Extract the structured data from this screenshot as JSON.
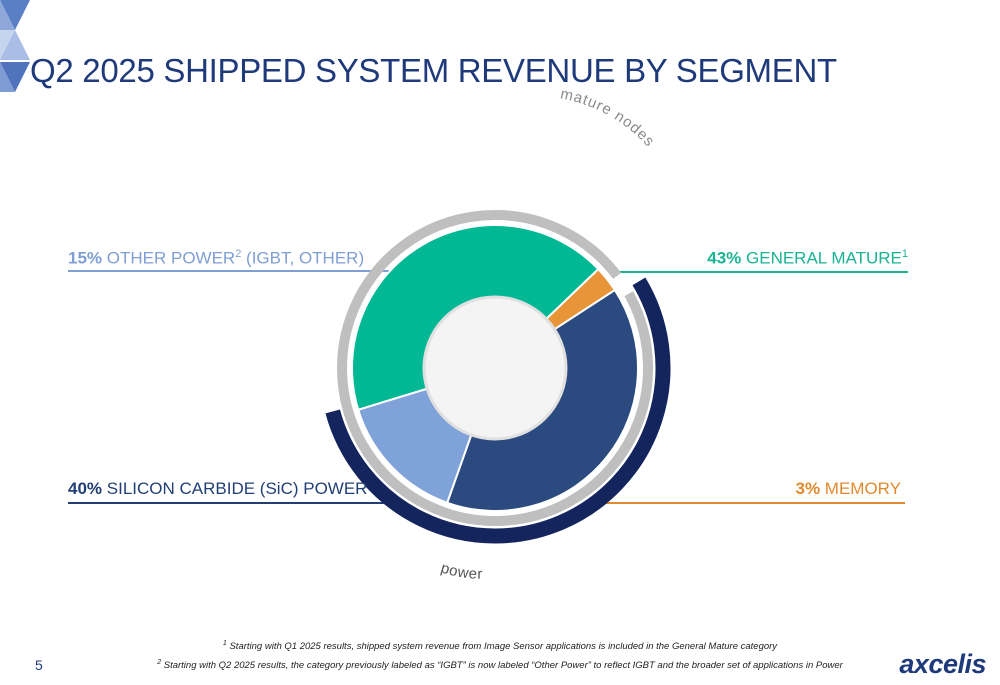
{
  "page": {
    "title": "Q2 2025 SHIPPED SYSTEM REVENUE BY SEGMENT",
    "page_number": "5",
    "logo_text": "axcelis"
  },
  "labels": {
    "other_power": {
      "pct": "15%",
      "name": " OTHER POWER",
      "sup": "2",
      "suffix": " (IGBT, OTHER)"
    },
    "general_mature": {
      "pct": "43%",
      "name": " GENERAL MATURE",
      "sup": "1"
    },
    "sic_power": {
      "pct": "40%",
      "name": " SILICON CARBIDE (SiC) POWER"
    },
    "memory": {
      "pct": "3%",
      "name": " MEMORY"
    }
  },
  "ring_labels": {
    "mature": "mature nodes",
    "power": "power"
  },
  "footnotes": {
    "n1_mark": "1",
    "n1": " Starting with Q1 2025 results, shipped system revenue from Image Sensor applications is included in the General Mature category",
    "n2_mark": "2",
    "n2": " Starting with Q2 2025 results, the category previously labeled as “IGBT” is now labeled “Other Power” to reflect IGBT and the broader set of applications in Power"
  },
  "colors": {
    "general_mature": "#00b894",
    "memory": "#e8953a",
    "sic_power": "#2b4a80",
    "other_power": "#7fa2d8",
    "ring_gray": "#bfbfbf",
    "power_arc": "#14255e"
  },
  "chart_data": {
    "type": "pie",
    "subtype": "donut",
    "categories": [
      "General Mature",
      "Memory",
      "Silicon Carbide (SiC) Power",
      "Other Power (IGBT, Other)"
    ],
    "values": [
      43,
      3,
      40,
      15
    ],
    "unit": "%",
    "groupings": [
      {
        "name": "mature nodes",
        "members": [
          "General Mature",
          "Memory"
        ]
      },
      {
        "name": "power",
        "members": [
          "Silicon Carbide (SiC) Power",
          "Other Power (IGBT, Other)"
        ]
      }
    ]
  }
}
